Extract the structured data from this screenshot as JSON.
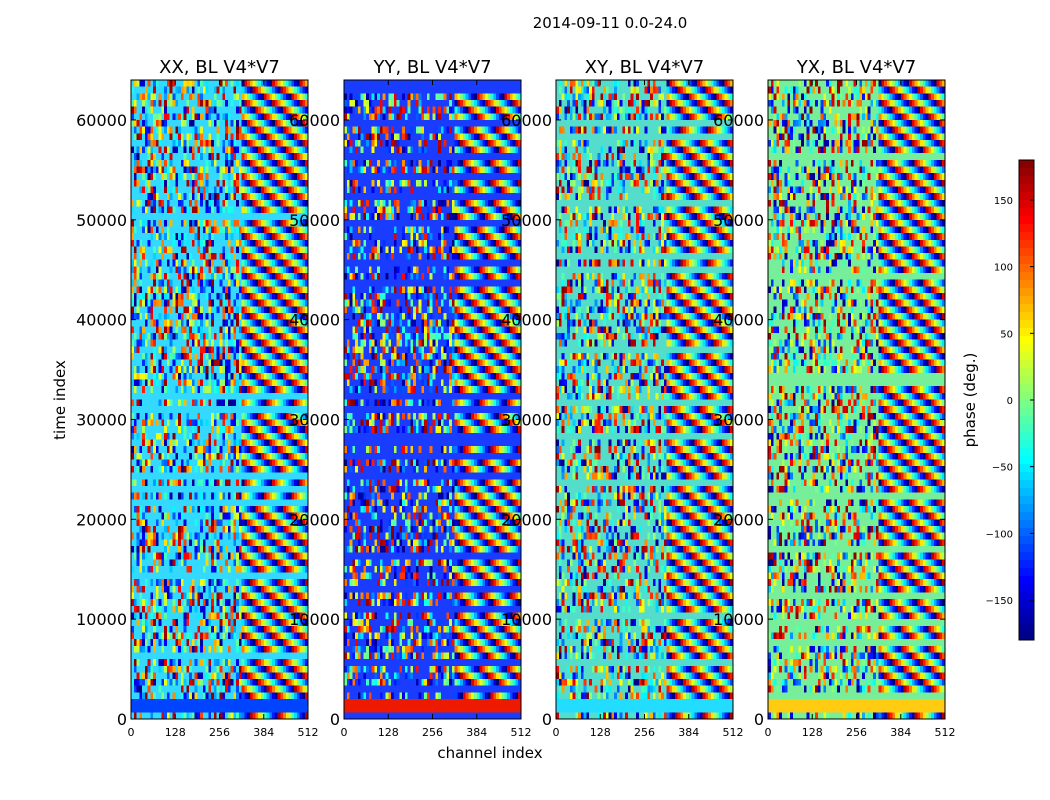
{
  "chart_data": {
    "type": "heatmap",
    "title": "2014-09-11 0.0-24.0",
    "xlabel": "channel index",
    "ylabel": "time index",
    "xlim": [
      0,
      512
    ],
    "ylim": [
      0,
      64000
    ],
    "xticks": [
      0,
      128,
      256,
      384,
      512
    ],
    "yticks": [
      0,
      10000,
      20000,
      30000,
      40000,
      50000,
      60000
    ],
    "colorbar": {
      "label": "phase (deg.)",
      "range": [
        -180,
        180
      ],
      "ticks": [
        -150,
        -100,
        -50,
        0,
        50,
        100,
        150
      ],
      "ticklabels": [
        "−150",
        "−100",
        "−50",
        "0",
        "50",
        "100",
        "150"
      ],
      "colormap": "jet",
      "stops": [
        "#00007f",
        "#0000ff",
        "#007fff",
        "#00ffff",
        "#7fff7f",
        "#ffff00",
        "#ff7f00",
        "#ff0000",
        "#7f0000"
      ]
    },
    "panels": [
      {
        "title": "XX, BL V4*V7",
        "polarization": "XX",
        "baseline": "V4*V7",
        "dominant_color": "#33d9ff",
        "base_band_color": "#0044ff"
      },
      {
        "title": "YY, BL V4*V7",
        "polarization": "YY",
        "baseline": "V4*V7",
        "dominant_color": "#1a3cff",
        "base_band_color": "#ee1a00"
      },
      {
        "title": "XY, BL V4*V7",
        "polarization": "XY",
        "baseline": "V4*V7",
        "dominant_color": "#55ddcc",
        "base_band_color": "#22ddff"
      },
      {
        "title": "YX, BL V4*V7",
        "polarization": "YX",
        "baseline": "V4*V7",
        "dominant_color": "#77ee99",
        "base_band_color": "#ffcc11"
      }
    ]
  }
}
